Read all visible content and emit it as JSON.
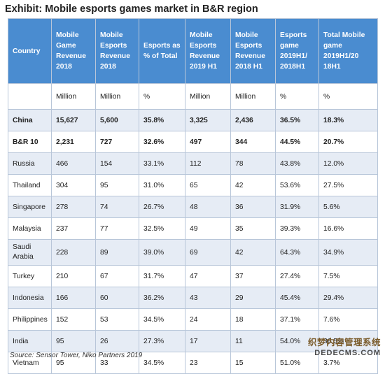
{
  "title": "Exhibit: Mobile esports games market in B&R region",
  "headers": [
    "Country",
    "Mobile Game Revenue 2018",
    "Mobile Esports Revenue 2018",
    "Esports as % of Total",
    "Mobile Esports Revenue 2019 H1",
    "Mobile Esports Revenue 2018 H1",
    "Esports game 2019H1/ 2018H1",
    "Total Mobile game 2019H1/20 18H1"
  ],
  "units": [
    "",
    "Million",
    "Million",
    "%",
    "Million",
    "Million",
    "%",
    "%"
  ],
  "rows": [
    [
      "China",
      "15,627",
      "5,600",
      "35.8%",
      "3,325",
      "2,436",
      "36.5%",
      "18.3%"
    ],
    [
      "B&R 10",
      "2,231",
      "727",
      "32.6%",
      "497",
      "344",
      "44.5%",
      "20.7%"
    ],
    [
      "Russia",
      "466",
      "154",
      "33.1%",
      "112",
      "78",
      "43.8%",
      "12.0%"
    ],
    [
      "Thailand",
      "304",
      "95",
      "31.0%",
      "65",
      "42",
      "53.6%",
      "27.5%"
    ],
    [
      "Singapore",
      "278",
      "74",
      "26.7%",
      "48",
      "36",
      "31.9%",
      "5.6%"
    ],
    [
      "Malaysia",
      "237",
      "77",
      "32.5%",
      "49",
      "35",
      "39.3%",
      "16.6%"
    ],
    [
      "Saudi Arabia",
      "228",
      "89",
      "39.0%",
      "69",
      "42",
      "64.3%",
      "34.9%"
    ],
    [
      "Turkey",
      "210",
      "67",
      "31.7%",
      "47",
      "37",
      "27.4%",
      "7.5%"
    ],
    [
      "Indonesia",
      "166",
      "60",
      "36.2%",
      "43",
      "29",
      "45.4%",
      "29.4%"
    ],
    [
      "Philippines",
      "152",
      "53",
      "34.5%",
      "24",
      "18",
      "37.1%",
      "7.6%"
    ],
    [
      "India",
      "95",
      "26",
      "27.3%",
      "17",
      "11",
      "54.0%",
      "36.5%"
    ],
    [
      "Vietnam",
      "95",
      "33",
      "34.5%",
      "23",
      "15",
      "51.0%",
      "3.7%"
    ]
  ],
  "source": "Source: Sensor Tower, Niko Partners 2019",
  "watermark": {
    "line1": "织梦内容管理系统",
    "line2": "DEDECMS.COM"
  },
  "colors": {
    "header_bg": "#4a8cd0",
    "alt_row_bg": "#e6ecf5",
    "border": "#b8c6d9"
  }
}
